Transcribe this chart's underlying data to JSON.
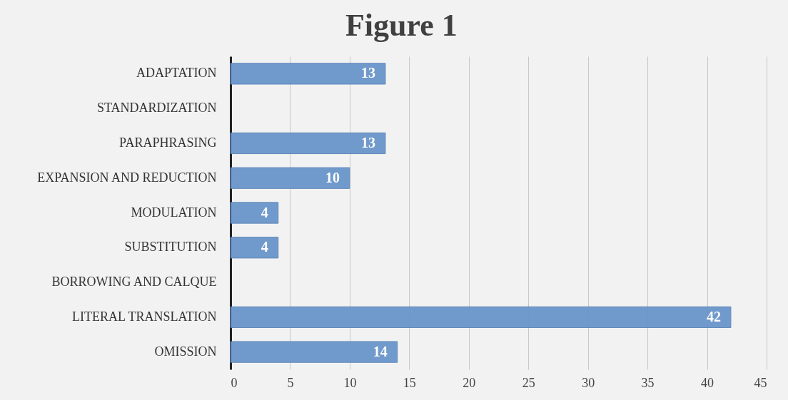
{
  "chart_data": {
    "type": "bar",
    "title": "Figure 1",
    "orientation": "horizontal",
    "categories": [
      "ADAPTATION",
      "STANDARDIZATION",
      "PARAPHRASING",
      "EXPANSION AND REDUCTION",
      "MODULATION",
      "SUBSTITUTION",
      "BORROWING AND CALQUE",
      "LITERAL TRANSLATION",
      "OMISSION"
    ],
    "values": [
      13,
      null,
      13,
      10,
      4,
      4,
      null,
      42,
      14
    ],
    "color": "#6b96cb",
    "xlim": [
      0,
      45
    ],
    "xticks": [
      0,
      5,
      10,
      15,
      20,
      25,
      30,
      35,
      40,
      45
    ],
    "grid": "x",
    "data_labels": true
  }
}
